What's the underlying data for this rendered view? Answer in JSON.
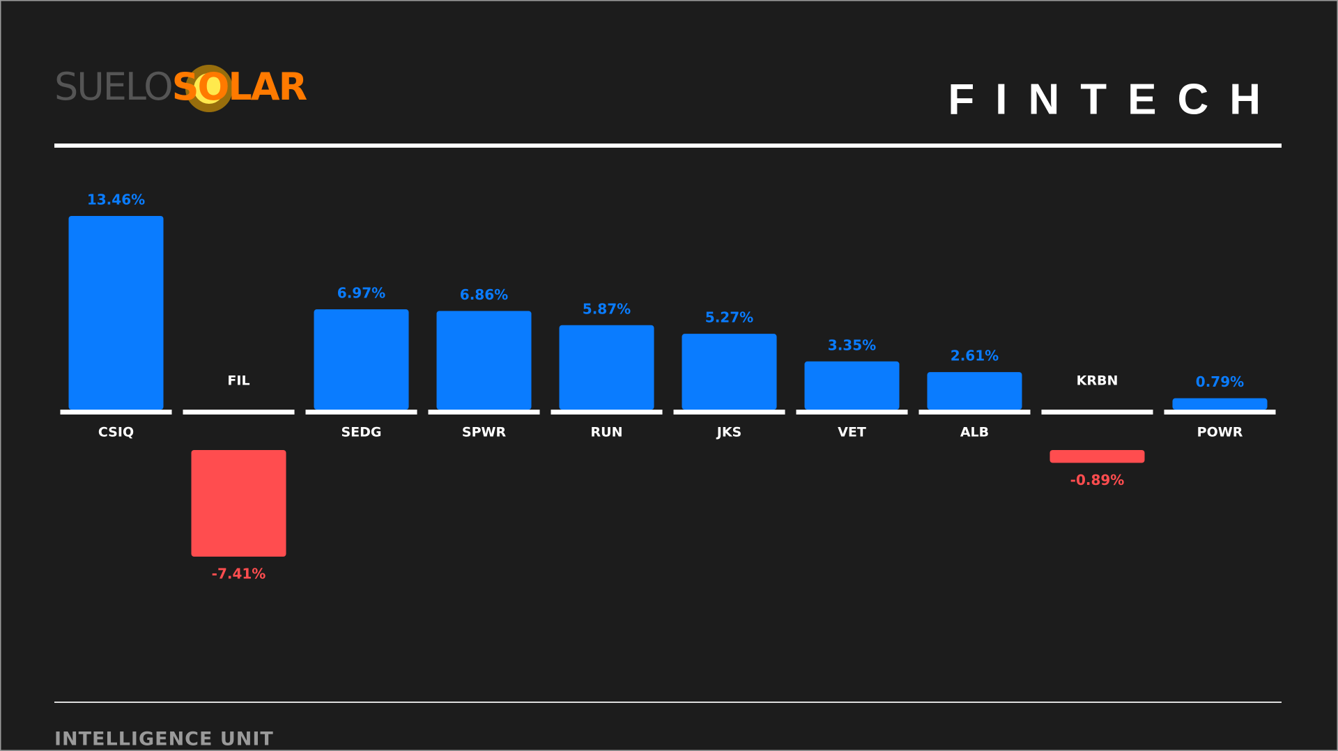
{
  "logo": {
    "left": "SUELO",
    "right": "SOLAR"
  },
  "chart_data": {
    "type": "bar",
    "title": "FINTECH",
    "categories": [
      "CSIQ",
      "FIL",
      "SEDG",
      "SPWR",
      "RUN",
      "JKS",
      "VET",
      "ALB",
      "KRBN",
      "POWR"
    ],
    "values": [
      13.46,
      -7.41,
      6.97,
      6.86,
      5.87,
      5.27,
      3.35,
      2.61,
      -0.89,
      0.79
    ],
    "value_labels": [
      "13.46%",
      "-7.41%",
      "6.97%",
      "6.86%",
      "5.87%",
      "5.27%",
      "3.35%",
      "2.61%",
      "-0.89%",
      "0.79%"
    ],
    "positive_color": "#0a7cff",
    "negative_color": "#ff4d4f"
  },
  "footer": "INTELLIGENCE UNIT"
}
